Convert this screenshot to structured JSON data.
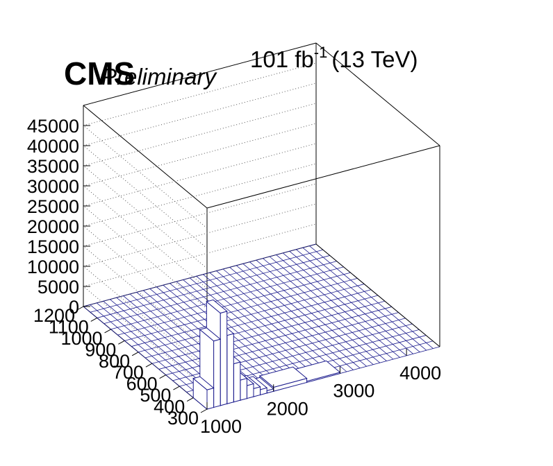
{
  "header": {
    "experiment": "CMS",
    "status": "Preliminary",
    "lumi_value": "101 fb",
    "lumi_exp": "-1",
    "energy": "(13 TeV)"
  },
  "chart_data": {
    "type": "lego",
    "title": "",
    "x_axis": {
      "ticks": [
        "1000",
        "2000",
        "3000",
        "4000"
      ],
      "range": [
        1000,
        4500
      ]
    },
    "y_axis": {
      "ticks": [
        "300",
        "400",
        "500",
        "600",
        "700",
        "800",
        "900",
        "1000",
        "1100",
        "1200"
      ],
      "range": [
        300,
        1200
      ]
    },
    "z_axis": {
      "ticks": [
        "0",
        "5000",
        "10000",
        "15000",
        "20000",
        "25000",
        "30000",
        "35000",
        "40000",
        "45000"
      ],
      "range": [
        0,
        50000
      ]
    },
    "grid": true,
    "colors": {
      "bin_fill": "#ffffff",
      "bin_edge": "#1a1a8c",
      "frame": "#000000"
    },
    "bins": [
      {
        "x0": 1000,
        "x1": 1100,
        "y0": 300,
        "y1": 400,
        "z": 4800
      },
      {
        "x0": 1100,
        "x1": 1200,
        "y0": 300,
        "y1": 400,
        "z": 16500
      },
      {
        "x0": 1200,
        "x1": 1300,
        "y0": 300,
        "y1": 400,
        "z": 23000
      },
      {
        "x0": 1300,
        "x1": 1400,
        "y0": 300,
        "y1": 400,
        "z": 17000
      },
      {
        "x0": 1400,
        "x1": 1500,
        "y0": 300,
        "y1": 400,
        "z": 9500
      },
      {
        "x0": 1500,
        "x1": 1600,
        "y0": 300,
        "y1": 400,
        "z": 5000
      },
      {
        "x0": 1600,
        "x1": 1700,
        "y0": 300,
        "y1": 400,
        "z": 3200
      },
      {
        "x0": 1700,
        "x1": 1800,
        "y0": 300,
        "y1": 400,
        "z": 2000
      },
      {
        "x0": 1800,
        "x1": 1900,
        "y0": 300,
        "y1": 400,
        "z": 1300
      },
      {
        "x0": 1900,
        "x1": 2000,
        "y0": 300,
        "y1": 400,
        "z": 600
      },
      {
        "x0": 2000,
        "x1": 2500,
        "y0": 300,
        "y1": 400,
        "z": 1000
      },
      {
        "x0": 2500,
        "x1": 3000,
        "y0": 300,
        "y1": 400,
        "z": 300
      }
    ]
  }
}
